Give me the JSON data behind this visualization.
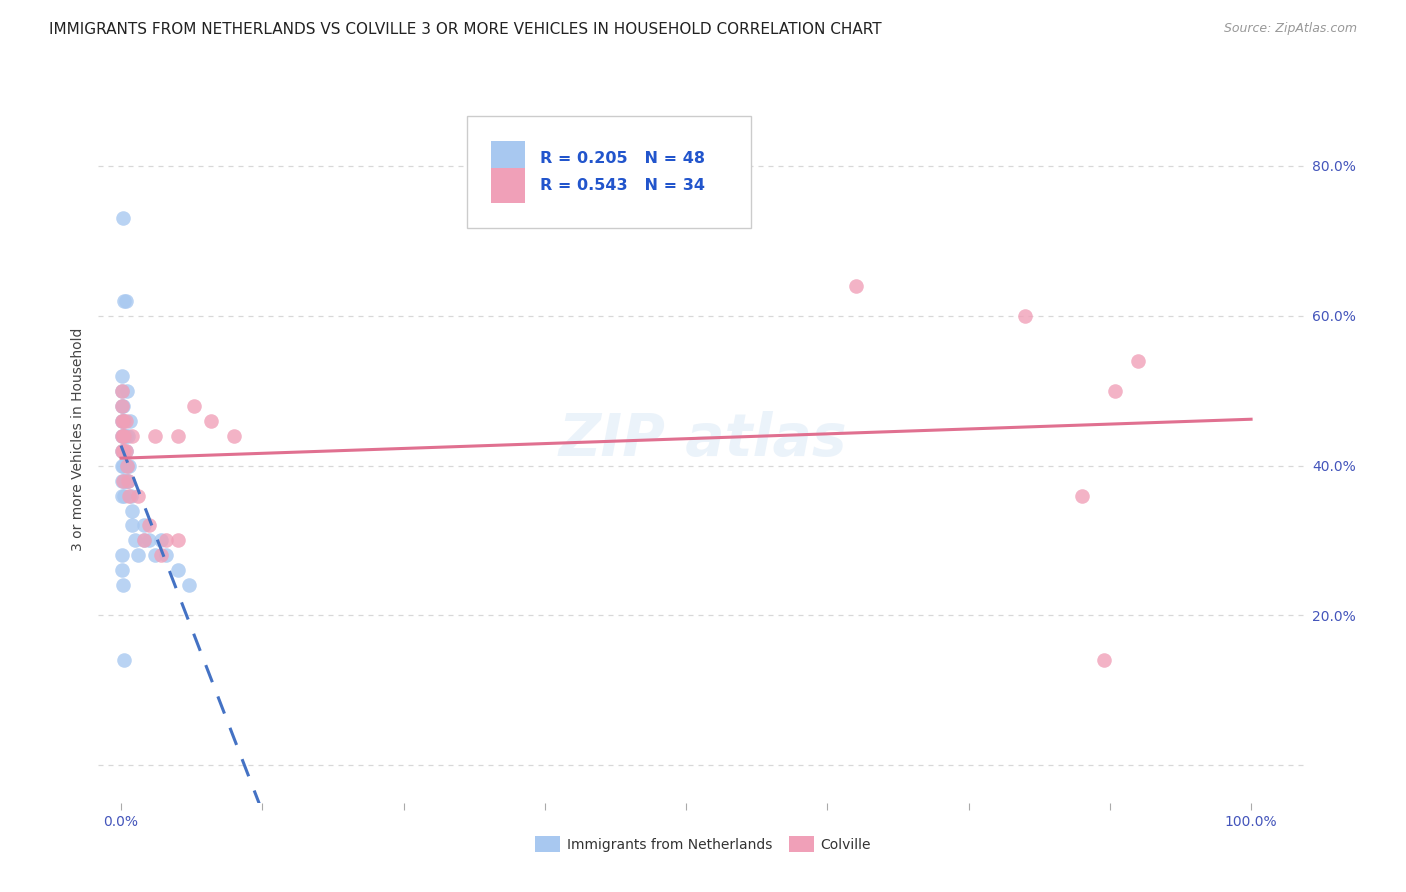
{
  "title": "IMMIGRANTS FROM NETHERLANDS VS COLVILLE 3 OR MORE VEHICLES IN HOUSEHOLD CORRELATION CHART",
  "source": "Source: ZipAtlas.com",
  "ylabel": "3 or more Vehicles in Household",
  "title_fontsize": 11,
  "source_fontsize": 9,
  "label_fontsize": 10,
  "tick_fontsize": 10,
  "background_color": "#ffffff",
  "grid_color": "#d8d8d8",
  "blue_color": "#a8c8f0",
  "pink_color": "#f0a0b8",
  "blue_line_color": "#4472c4",
  "pink_line_color": "#e07090",
  "R_blue": 0.205,
  "N_blue": 48,
  "R_pink": 0.543,
  "N_pink": 34,
  "blue_x": [
    0.002,
    0.003,
    0.004,
    0.005,
    0.001,
    0.001,
    0.001,
    0.001,
    0.001,
    0.001,
    0.001,
    0.001,
    0.001,
    0.002,
    0.002,
    0.002,
    0.002,
    0.002,
    0.003,
    0.003,
    0.003,
    0.003,
    0.004,
    0.004,
    0.004,
    0.005,
    0.005,
    0.006,
    0.006,
    0.007,
    0.008,
    0.009,
    0.01,
    0.01,
    0.012,
    0.015,
    0.02,
    0.02,
    0.025,
    0.03,
    0.035,
    0.04,
    0.05,
    0.06,
    0.001,
    0.001,
    0.002,
    0.003
  ],
  "blue_y": [
    0.73,
    0.62,
    0.62,
    0.5,
    0.52,
    0.5,
    0.48,
    0.46,
    0.44,
    0.42,
    0.4,
    0.38,
    0.36,
    0.48,
    0.46,
    0.44,
    0.42,
    0.4,
    0.46,
    0.44,
    0.38,
    0.36,
    0.44,
    0.42,
    0.38,
    0.4,
    0.38,
    0.44,
    0.38,
    0.4,
    0.46,
    0.36,
    0.34,
    0.32,
    0.3,
    0.28,
    0.32,
    0.3,
    0.3,
    0.28,
    0.3,
    0.28,
    0.26,
    0.24,
    0.28,
    0.26,
    0.24,
    0.14
  ],
  "pink_x": [
    0.001,
    0.001,
    0.001,
    0.001,
    0.001,
    0.002,
    0.002,
    0.002,
    0.002,
    0.003,
    0.003,
    0.004,
    0.004,
    0.005,
    0.006,
    0.007,
    0.01,
    0.015,
    0.02,
    0.025,
    0.03,
    0.035,
    0.04,
    0.05,
    0.05,
    0.065,
    0.08,
    0.1,
    0.65,
    0.8,
    0.85,
    0.87,
    0.88,
    0.9
  ],
  "pink_y": [
    0.5,
    0.48,
    0.46,
    0.44,
    0.42,
    0.46,
    0.44,
    0.42,
    0.38,
    0.44,
    0.42,
    0.46,
    0.42,
    0.4,
    0.38,
    0.36,
    0.44,
    0.36,
    0.3,
    0.32,
    0.44,
    0.28,
    0.3,
    0.44,
    0.3,
    0.48,
    0.46,
    0.44,
    0.64,
    0.6,
    0.36,
    0.14,
    0.5,
    0.54
  ],
  "xlim": [
    -0.02,
    1.05
  ],
  "ylim": [
    -0.05,
    0.92
  ],
  "xtick_positions": [
    0.0,
    0.125,
    0.25,
    0.375,
    0.5,
    0.625,
    0.75,
    0.875,
    1.0
  ],
  "xticklabels": [
    "0.0%",
    "",
    "",
    "",
    "",
    "",
    "",
    "",
    "100.0%"
  ],
  "ytick_positions": [
    0.0,
    0.2,
    0.4,
    0.6,
    0.8
  ],
  "yticklabels_right": [
    "",
    "20.0%",
    "40.0%",
    "60.0%",
    "80.0%"
  ],
  "legend_labels": [
    "Immigrants from Netherlands",
    "Colville"
  ]
}
